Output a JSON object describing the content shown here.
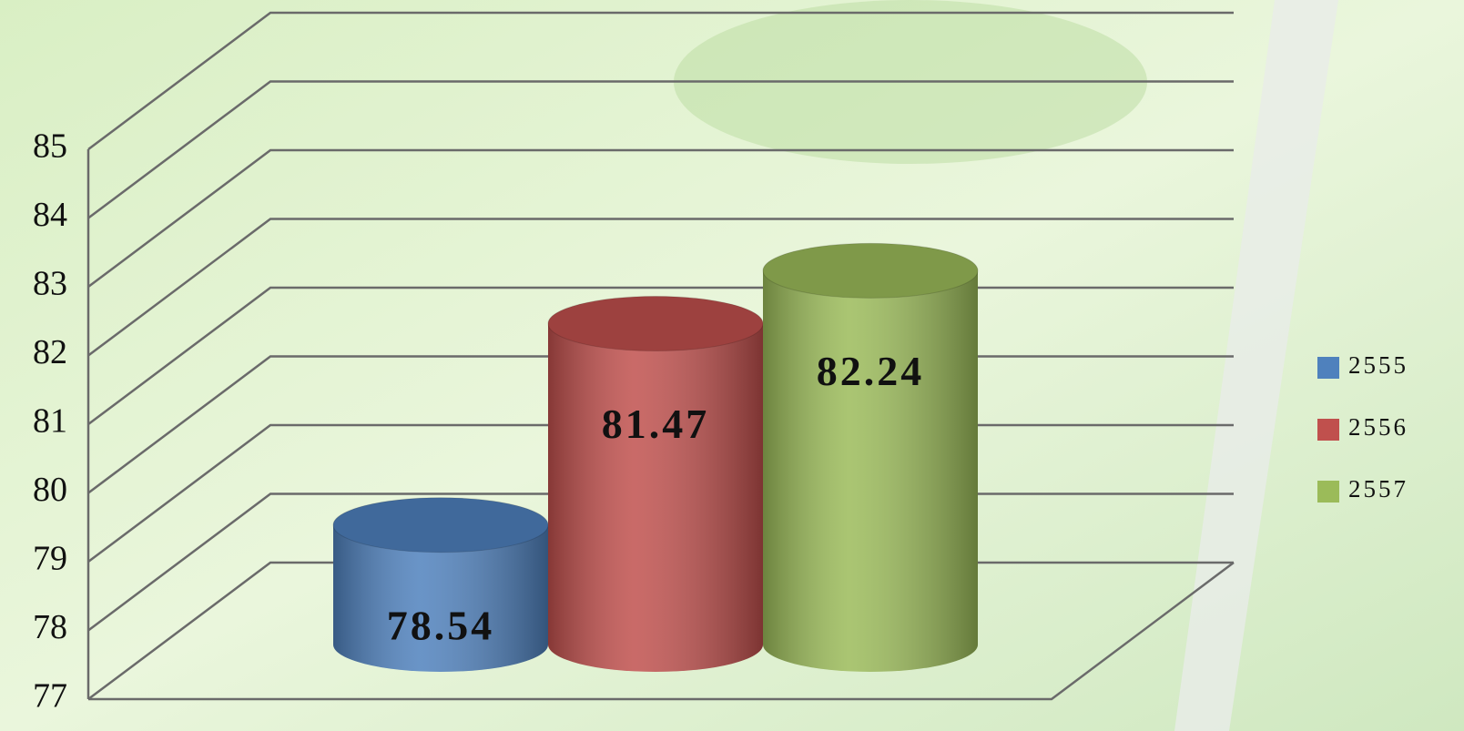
{
  "chart_data": {
    "type": "bar",
    "series": [
      {
        "name": "2555",
        "color": "#4f81bd",
        "values": [
          78.54
        ]
      },
      {
        "name": "2556",
        "color": "#c0504d",
        "values": [
          81.47
        ]
      },
      {
        "name": "2557",
        "color": "#9bbb59",
        "values": [
          82.24
        ]
      }
    ],
    "ylim": [
      77,
      85
    ],
    "yticks": [
      77,
      78,
      79,
      80,
      81,
      82,
      83,
      84,
      85
    ],
    "grid": true,
    "legend": "right"
  }
}
